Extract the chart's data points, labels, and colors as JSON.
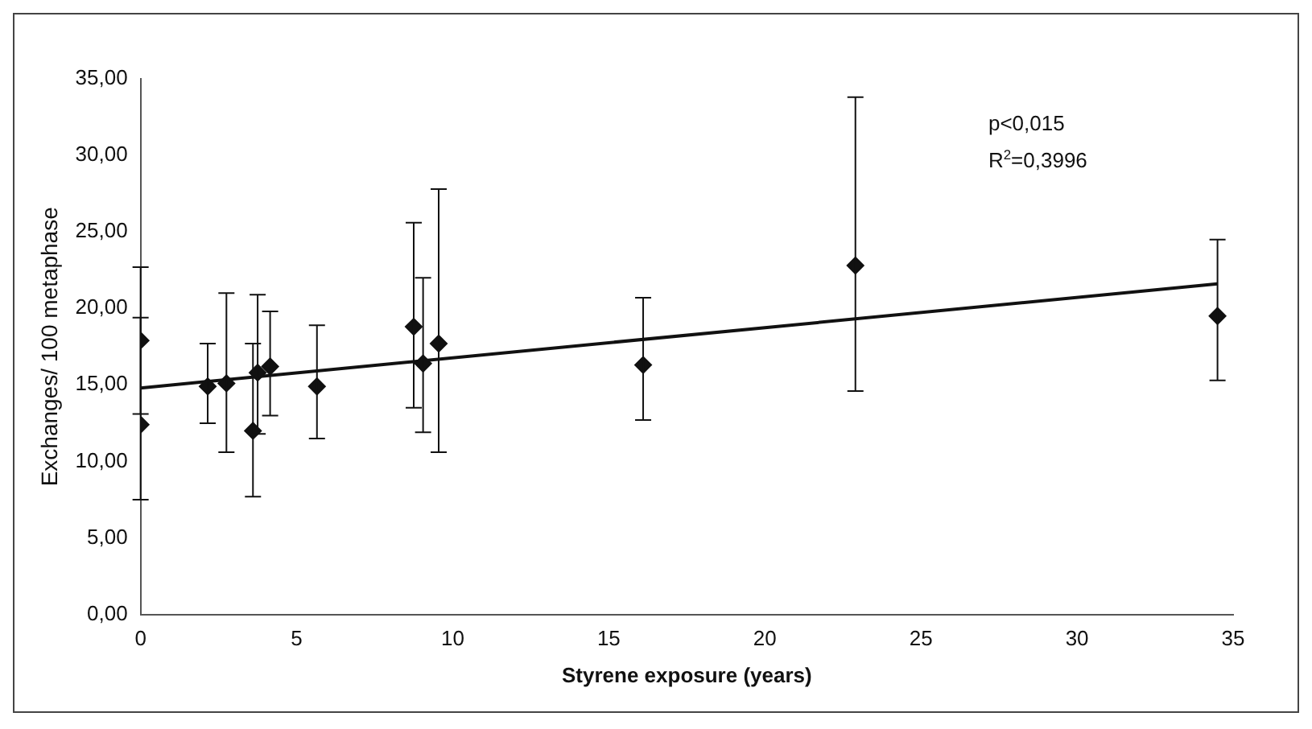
{
  "chart_data": {
    "type": "scatter",
    "xlabel": "Styrene exposure (years)",
    "ylabel": "Exchanges/ 100 metaphase",
    "xlim": [
      0,
      35
    ],
    "xticks": [
      0,
      5,
      10,
      15,
      20,
      25,
      30,
      35
    ],
    "ylim": [
      0,
      35
    ],
    "yticks": [
      {
        "value": 0,
        "label": "0,00"
      },
      {
        "value": 5,
        "label": "5,00"
      },
      {
        "value": 10,
        "label": "10,00"
      },
      {
        "value": 15,
        "label": "15,00"
      },
      {
        "value": 20,
        "label": "20,00"
      },
      {
        "value": 25,
        "label": "25,00"
      },
      {
        "value": 30,
        "label": "30,00"
      },
      {
        "value": 35,
        "label": "35,00"
      }
    ],
    "grid": false,
    "legend": false,
    "marker": "diamond",
    "annotations": [
      "p<0,015",
      "R$^{2}$=0,3996"
    ],
    "series": [
      {
        "type": "scatter",
        "color": "#111111",
        "x": [
          0,
          0,
          2.15,
          2.75,
          3.6,
          3.75,
          4.15,
          5.65,
          8.75,
          9.05,
          9.55,
          16.1,
          22.9,
          34.5
        ],
        "values": [
          17.9,
          12.4,
          14.9,
          15.1,
          12.0,
          15.8,
          16.2,
          14.9,
          18.8,
          16.4,
          17.7,
          16.3,
          22.8,
          19.5
        ],
        "errors": [
          [
            13.1,
            22.7
          ],
          [
            7.5,
            19.4
          ],
          [
            12.5,
            17.7
          ],
          [
            10.6,
            21.0
          ],
          [
            7.7,
            17.7
          ],
          [
            11.8,
            20.9
          ],
          [
            13.0,
            19.8
          ],
          [
            11.5,
            18.9
          ],
          [
            13.5,
            25.6
          ],
          [
            11.9,
            22.0
          ],
          [
            10.6,
            27.8
          ],
          [
            12.7,
            20.7
          ],
          [
            14.6,
            33.8
          ],
          [
            15.3,
            24.5
          ]
        ]
      },
      {
        "type": "line",
        "color": "#111111",
        "x": [
          0,
          34.5
        ],
        "values": [
          14.8,
          21.6
        ],
        "line_style": "solid",
        "marker": "none"
      }
    ]
  }
}
